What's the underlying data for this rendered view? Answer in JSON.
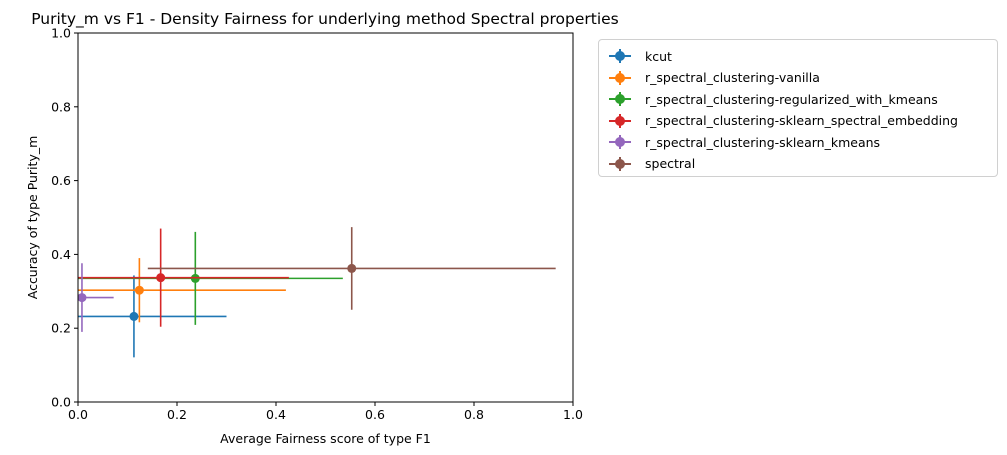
{
  "chart_data": {
    "type": "scatter",
    "title": "Purity_m vs F1 - Density Fairness for underlying method Spectral properties",
    "xlabel": "Average Fairness score of type F1",
    "ylabel": "Accuracy of type Purity_m",
    "xlim": [
      0.0,
      1.0
    ],
    "ylim": [
      0.0,
      1.0
    ],
    "xticks": [
      "0.0",
      "0.2",
      "0.4",
      "0.6",
      "0.8",
      "1.0"
    ],
    "yticks": [
      "0.0",
      "0.2",
      "0.4",
      "0.6",
      "0.8",
      "1.0"
    ],
    "grid": false,
    "legend_position": "outside upper right",
    "series": [
      {
        "name": "kcut",
        "color": "#1f77b4",
        "x": 0.113,
        "y": 0.232,
        "xerr": 0.187,
        "yerr": 0.111
      },
      {
        "name": "r_spectral_clustering-vanilla",
        "color": "#ff7f0e",
        "x": 0.124,
        "y": 0.303,
        "xerr": 0.296,
        "yerr": 0.087
      },
      {
        "name": "r_spectral_clustering-regularized_with_kmeans",
        "color": "#2ca02c",
        "x": 0.237,
        "y": 0.335,
        "xerr": 0.298,
        "yerr": 0.126
      },
      {
        "name": "r_spectral_clustering-sklearn_spectral_embedding",
        "color": "#d62728",
        "x": 0.167,
        "y": 0.337,
        "xerr": 0.259,
        "yerr": 0.133
      },
      {
        "name": "r_spectral_clustering-sklearn_kmeans",
        "color": "#9467bd",
        "x": 0.008,
        "y": 0.283,
        "xerr": 0.064,
        "yerr": 0.093
      },
      {
        "name": "spectral",
        "color": "#8c564b",
        "x": 0.553,
        "y": 0.362,
        "xerr": 0.412,
        "yerr": 0.112
      }
    ]
  }
}
